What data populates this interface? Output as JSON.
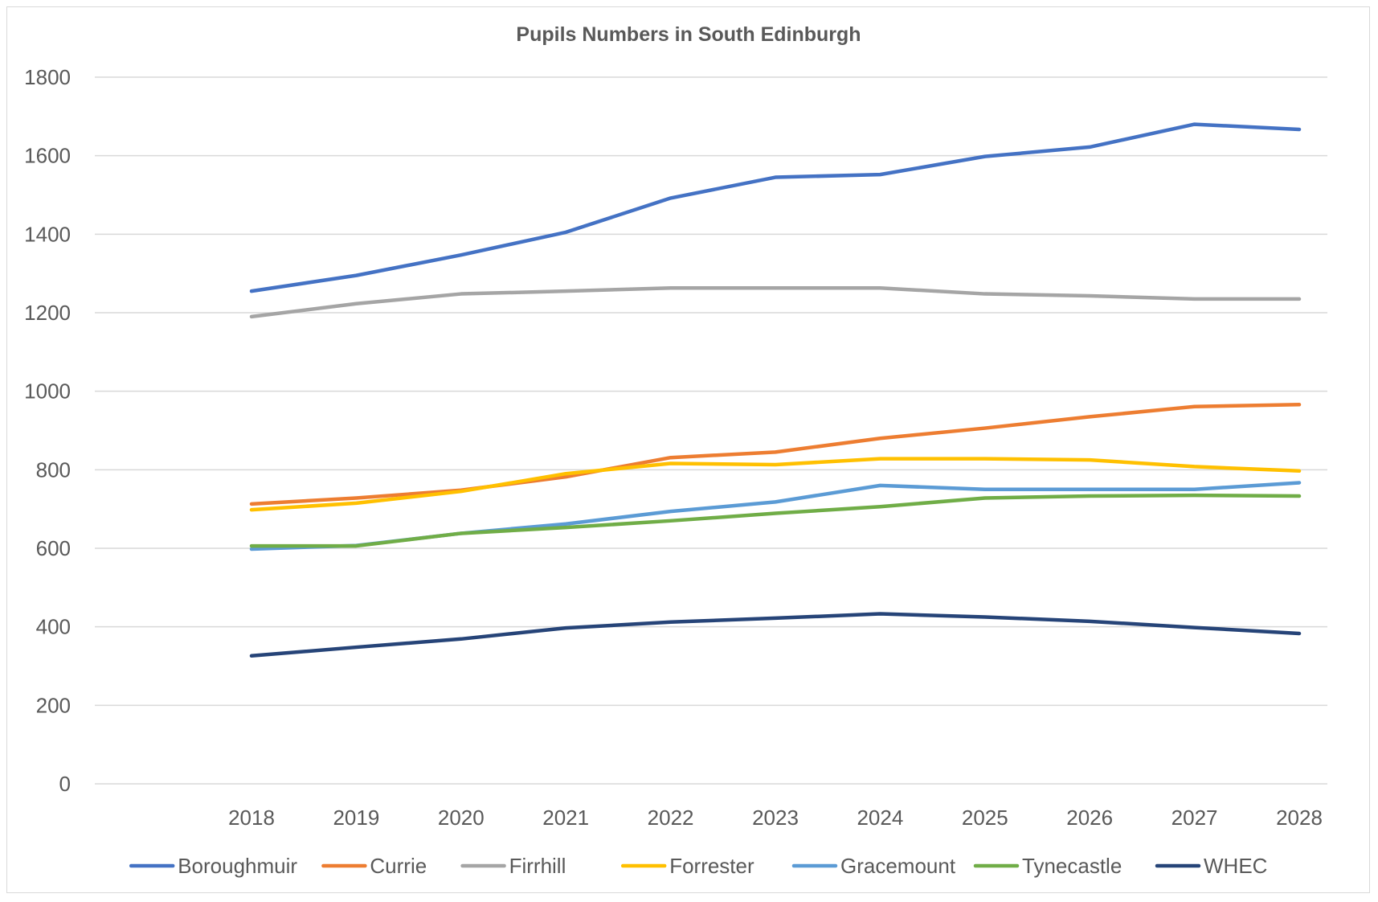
{
  "chart_data": {
    "type": "line",
    "title": "Pupils Numbers in South Edinburgh",
    "xlabel": "",
    "ylabel": "",
    "ylim": [
      0,
      1800
    ],
    "yticks": [
      0,
      200,
      400,
      600,
      800,
      1000,
      1200,
      1400,
      1600,
      1800
    ],
    "categories": [
      "2018",
      "2019",
      "2020",
      "2021",
      "2022",
      "2023",
      "2024",
      "2025",
      "2026",
      "2027",
      "2028"
    ],
    "grid": true,
    "legend_position": "bottom",
    "series": [
      {
        "name": "Boroughmuir",
        "color": "#4472C4",
        "values": [
          1255,
          1295,
          1347,
          1405,
          1492,
          1545,
          1552,
          1598,
          1622,
          1680,
          1667
        ]
      },
      {
        "name": "Currie",
        "color": "#ED7D31",
        "values": [
          713,
          728,
          748,
          782,
          831,
          845,
          880,
          906,
          935,
          961,
          966
        ]
      },
      {
        "name": "Firrhill",
        "color": "#A5A5A5",
        "values": [
          1190,
          1223,
          1248,
          1255,
          1263,
          1263,
          1263,
          1248,
          1243,
          1235,
          1235
        ]
      },
      {
        "name": "Forrester",
        "color": "#FFC000",
        "values": [
          698,
          715,
          745,
          790,
          816,
          813,
          828,
          828,
          825,
          808,
          797
        ]
      },
      {
        "name": "Gracemount",
        "color": "#5B9BD5",
        "values": [
          598,
          607,
          638,
          662,
          694,
          718,
          760,
          750,
          750,
          750,
          767
        ]
      },
      {
        "name": "Tynecastle",
        "color": "#70AD47",
        "values": [
          606,
          606,
          638,
          653,
          670,
          689,
          706,
          728,
          733,
          735,
          733
        ]
      },
      {
        "name": "WHEC",
        "color": "#264478",
        "values": [
          326,
          348,
          369,
          397,
          412,
          422,
          433,
          425,
          414,
          398,
          383
        ]
      }
    ]
  }
}
